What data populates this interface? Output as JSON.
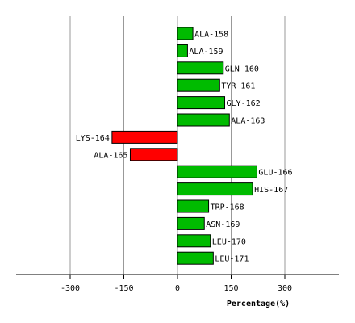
{
  "chart_data": {
    "type": "bar",
    "orientation": "horizontal",
    "title": "",
    "xlabel": "Percentage(%)",
    "ylabel": "",
    "xlim": [
      -400,
      400
    ],
    "xticks": [
      -300,
      -150,
      0,
      150,
      300
    ],
    "xtick_labels": [
      "-300",
      "-150",
      "0",
      "150",
      "300"
    ],
    "grid": true,
    "legend": "none",
    "categories": [
      "ALA-158",
      "ALA-159",
      "GLN-160",
      "TYR-161",
      "GLY-162",
      "ALA-163",
      "LYS-164",
      "ALA-165",
      "GLU-166",
      "HIS-167",
      "TRP-168",
      "ASN-169",
      "LEU-170",
      "LEU-171"
    ],
    "values": [
      43,
      28,
      128,
      118,
      132,
      145,
      -183,
      -132,
      222,
      210,
      87,
      75,
      92,
      100
    ],
    "colors": {
      "positive": "#00bb00",
      "negative": "#ff0000",
      "grid": "#999999",
      "axis": "#000000",
      "bar_stroke": "#000000"
    }
  }
}
